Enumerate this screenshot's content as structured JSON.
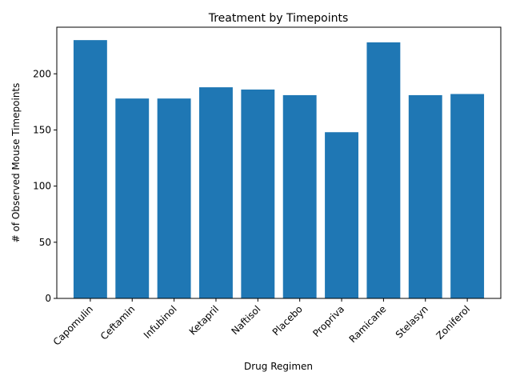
{
  "chart_data": {
    "type": "bar",
    "title": "Treatment by Timepoints",
    "xlabel": "Drug Regimen",
    "ylabel": "# of Observed Mouse Timepoints",
    "categories": [
      "Capomulin",
      "Ceftamin",
      "Infubinol",
      "Ketapril",
      "Naftisol",
      "Placebo",
      "Propriva",
      "Ramicane",
      "Stelasyn",
      "Zoniferol"
    ],
    "values": [
      230,
      178,
      178,
      188,
      186,
      181,
      148,
      228,
      181,
      182
    ],
    "yticks": [
      "0",
      "50",
      "100",
      "150",
      "200"
    ],
    "ylim": [
      0,
      241.5
    ],
    "bar_color": "#1f77b4",
    "grid": false,
    "legend": false
  }
}
